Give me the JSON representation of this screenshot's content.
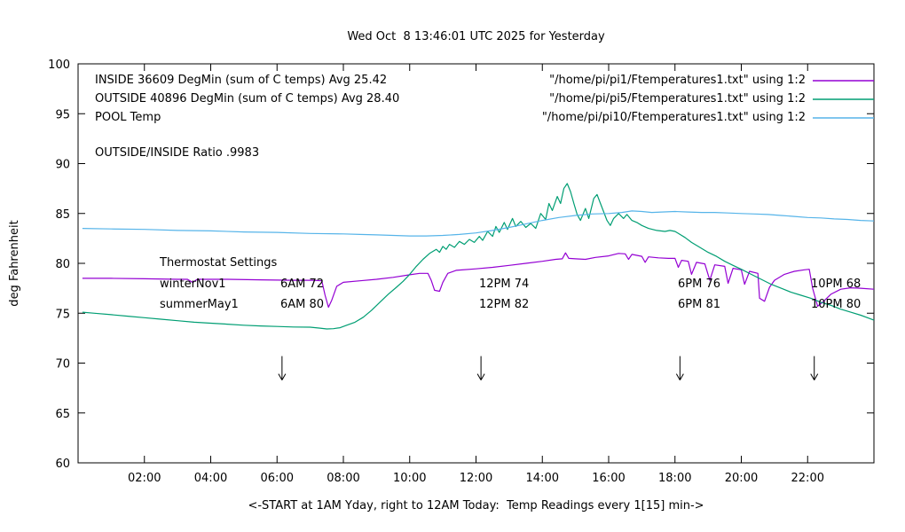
{
  "title": "Wed Oct  8 13:46:01 UTC 2025 for Yesterday",
  "axes": {
    "ylabel": "deg Fahrenheit",
    "xlabel": "<-START at 1AM Yday, right to 12AM Today:  Temp Readings every 1[15] min->"
  },
  "legend": {
    "rows": [
      {
        "label": "INSIDE 36609 DegMin (sum of C temps) Avg 25.42",
        "file": "\"/home/pi/pi1/Ftemperatures1.txt\" using 1:2",
        "color": "#9400d3"
      },
      {
        "label": "OUTSIDE 40896 DegMin (sum of C temps) Avg 28.40",
        "file": "\"/home/pi/pi5/Ftemperatures1.txt\" using 1:2",
        "color": "#009e73"
      },
      {
        "label": "POOL Temp",
        "file": "\"/home/pi/pi10/Ftemperatures1.txt\" using 1:2",
        "color": "#56b4e9"
      }
    ]
  },
  "ratio_text": "OUTSIDE/INSIDE Ratio .9983",
  "thermostat": {
    "heading": "Thermostat Settings",
    "rows": [
      {
        "name": "winterNov1",
        "cols": [
          "6AM 72",
          "12PM 74",
          "6PM 76",
          "10PM 68"
        ]
      },
      {
        "name": "summerMay1",
        "cols": [
          "6AM 80",
          "12PM 82",
          "6PM 81",
          "10PM 80"
        ]
      }
    ]
  },
  "chart_data": {
    "type": "line",
    "title": "Wed Oct  8 13:46:01 UTC 2025 for Yesterday",
    "xlabel": "<-START at 1AM Yday, right to 12AM Today:  Temp Readings every 1[15] min->",
    "ylabel": "deg Fahrenheit",
    "xlim": [
      0,
      24
    ],
    "ylim": [
      60,
      100
    ],
    "grid": false,
    "legend_position": "top-right-inside",
    "xticks": [
      {
        "v": 2,
        "label": "02:00"
      },
      {
        "v": 4,
        "label": "04:00"
      },
      {
        "v": 6,
        "label": "06:00"
      },
      {
        "v": 8,
        "label": "08:00"
      },
      {
        "v": 10,
        "label": "10:00"
      },
      {
        "v": 12,
        "label": "12:00"
      },
      {
        "v": 14,
        "label": "14:00"
      },
      {
        "v": 16,
        "label": "16:00"
      },
      {
        "v": 18,
        "label": "18:00"
      },
      {
        "v": 20,
        "label": "20:00"
      },
      {
        "v": 22,
        "label": "22:00"
      }
    ],
    "yticks": [
      60,
      65,
      70,
      75,
      80,
      85,
      90,
      95,
      100
    ],
    "arrows": {
      "times": [
        6.15,
        12.15,
        18.15,
        22.2
      ],
      "y_from": 70.7,
      "y_to": 68.3
    },
    "series": [
      {
        "name": "INSIDE",
        "color": "#9400d3",
        "points": [
          [
            0.13,
            78.5
          ],
          [
            1,
            78.5
          ],
          [
            2,
            78.45
          ],
          [
            3,
            78.4
          ],
          [
            3.3,
            78.4
          ],
          [
            3.45,
            78.1
          ],
          [
            3.6,
            78.4
          ],
          [
            4.5,
            78.4
          ],
          [
            5.5,
            78.35
          ],
          [
            6.5,
            78.3
          ],
          [
            7.1,
            78.3
          ],
          [
            7.35,
            78.25
          ],
          [
            7.45,
            76.8
          ],
          [
            7.55,
            75.6
          ],
          [
            7.65,
            76.3
          ],
          [
            7.8,
            77.7
          ],
          [
            8,
            78.1
          ],
          [
            8.5,
            78.25
          ],
          [
            9,
            78.4
          ],
          [
            9.5,
            78.6
          ],
          [
            10,
            78.85
          ],
          [
            10.3,
            79.0
          ],
          [
            10.55,
            79.0
          ],
          [
            10.65,
            78.3
          ],
          [
            10.75,
            77.3
          ],
          [
            10.9,
            77.2
          ],
          [
            11,
            78.1
          ],
          [
            11.15,
            79.0
          ],
          [
            11.4,
            79.3
          ],
          [
            12,
            79.45
          ],
          [
            12.5,
            79.6
          ],
          [
            13,
            79.8
          ],
          [
            13.5,
            80.0
          ],
          [
            14,
            80.2
          ],
          [
            14.4,
            80.4
          ],
          [
            14.6,
            80.45
          ],
          [
            14.7,
            81.05
          ],
          [
            14.8,
            80.5
          ],
          [
            15,
            80.45
          ],
          [
            15.3,
            80.4
          ],
          [
            15.6,
            80.6
          ],
          [
            16,
            80.75
          ],
          [
            16.3,
            81.0
          ],
          [
            16.5,
            80.95
          ],
          [
            16.6,
            80.4
          ],
          [
            16.7,
            80.9
          ],
          [
            17,
            80.7
          ],
          [
            17.1,
            80.1
          ],
          [
            17.2,
            80.65
          ],
          [
            17.5,
            80.55
          ],
          [
            17.8,
            80.5
          ],
          [
            18,
            80.5
          ],
          [
            18.1,
            79.6
          ],
          [
            18.2,
            80.3
          ],
          [
            18.4,
            80.2
          ],
          [
            18.5,
            78.9
          ],
          [
            18.65,
            80.1
          ],
          [
            18.9,
            79.95
          ],
          [
            19.05,
            78.3
          ],
          [
            19.2,
            79.85
          ],
          [
            19.5,
            79.7
          ],
          [
            19.6,
            78.0
          ],
          [
            19.75,
            79.5
          ],
          [
            20,
            79.35
          ],
          [
            20.1,
            77.9
          ],
          [
            20.25,
            79.2
          ],
          [
            20.5,
            79.0
          ],
          [
            20.55,
            76.5
          ],
          [
            20.7,
            76.2
          ],
          [
            20.85,
            77.6
          ],
          [
            21,
            78.3
          ],
          [
            21.3,
            78.9
          ],
          [
            21.6,
            79.2
          ],
          [
            21.9,
            79.35
          ],
          [
            22.05,
            79.4
          ],
          [
            22.15,
            77.5
          ],
          [
            22.3,
            75.7
          ],
          [
            22.45,
            76.1
          ],
          [
            22.7,
            76.9
          ],
          [
            23,
            77.4
          ],
          [
            23.3,
            77.55
          ],
          [
            23.6,
            77.5
          ],
          [
            24,
            77.4
          ]
        ]
      },
      {
        "name": "OUTSIDE",
        "color": "#009e73",
        "points": [
          [
            0.13,
            75.1
          ],
          [
            0.5,
            75.0
          ],
          [
            1,
            74.85
          ],
          [
            1.5,
            74.7
          ],
          [
            2,
            74.55
          ],
          [
            2.5,
            74.4
          ],
          [
            3,
            74.25
          ],
          [
            3.5,
            74.1
          ],
          [
            4,
            74.0
          ],
          [
            4.5,
            73.9
          ],
          [
            5,
            73.8
          ],
          [
            5.5,
            73.72
          ],
          [
            6,
            73.67
          ],
          [
            6.5,
            73.62
          ],
          [
            7,
            73.6
          ],
          [
            7.3,
            73.5
          ],
          [
            7.5,
            73.42
          ],
          [
            7.7,
            73.45
          ],
          [
            7.9,
            73.55
          ],
          [
            8.1,
            73.8
          ],
          [
            8.35,
            74.1
          ],
          [
            8.6,
            74.6
          ],
          [
            8.85,
            75.3
          ],
          [
            9.1,
            76.1
          ],
          [
            9.35,
            76.9
          ],
          [
            9.6,
            77.6
          ],
          [
            9.8,
            78.2
          ],
          [
            10,
            78.9
          ],
          [
            10.2,
            79.7
          ],
          [
            10.4,
            80.4
          ],
          [
            10.6,
            81.0
          ],
          [
            10.8,
            81.4
          ],
          [
            10.9,
            81.1
          ],
          [
            11,
            81.7
          ],
          [
            11.1,
            81.4
          ],
          [
            11.2,
            81.9
          ],
          [
            11.35,
            81.6
          ],
          [
            11.5,
            82.2
          ],
          [
            11.65,
            81.9
          ],
          [
            11.8,
            82.4
          ],
          [
            11.95,
            82.1
          ],
          [
            12.1,
            82.7
          ],
          [
            12.2,
            82.3
          ],
          [
            12.35,
            83.2
          ],
          [
            12.5,
            82.7
          ],
          [
            12.6,
            83.7
          ],
          [
            12.7,
            83.1
          ],
          [
            12.85,
            84.1
          ],
          [
            12.95,
            83.4
          ],
          [
            13.1,
            84.5
          ],
          [
            13.2,
            83.7
          ],
          [
            13.35,
            84.2
          ],
          [
            13.5,
            83.6
          ],
          [
            13.65,
            84.0
          ],
          [
            13.8,
            83.5
          ],
          [
            13.95,
            85.0
          ],
          [
            14.1,
            84.4
          ],
          [
            14.2,
            86.0
          ],
          [
            14.3,
            85.3
          ],
          [
            14.45,
            86.7
          ],
          [
            14.55,
            86.0
          ],
          [
            14.65,
            87.5
          ],
          [
            14.75,
            88.0
          ],
          [
            14.85,
            87.2
          ],
          [
            14.95,
            86.0
          ],
          [
            15.05,
            84.9
          ],
          [
            15.15,
            84.3
          ],
          [
            15.3,
            85.5
          ],
          [
            15.4,
            84.5
          ],
          [
            15.55,
            86.5
          ],
          [
            15.65,
            86.9
          ],
          [
            15.8,
            85.6
          ],
          [
            15.95,
            84.3
          ],
          [
            16.05,
            83.8
          ],
          [
            16.15,
            84.5
          ],
          [
            16.3,
            85.0
          ],
          [
            16.45,
            84.5
          ],
          [
            16.55,
            84.9
          ],
          [
            16.7,
            84.3
          ],
          [
            16.85,
            84.1
          ],
          [
            17,
            83.8
          ],
          [
            17.2,
            83.5
          ],
          [
            17.45,
            83.3
          ],
          [
            17.7,
            83.2
          ],
          [
            17.85,
            83.3
          ],
          [
            18,
            83.2
          ],
          [
            18.15,
            82.9
          ],
          [
            18.3,
            82.6
          ],
          [
            18.5,
            82.1
          ],
          [
            18.75,
            81.6
          ],
          [
            19,
            81.1
          ],
          [
            19.25,
            80.7
          ],
          [
            19.5,
            80.2
          ],
          [
            19.75,
            79.8
          ],
          [
            20,
            79.4
          ],
          [
            20.3,
            78.9
          ],
          [
            20.6,
            78.4
          ],
          [
            20.9,
            77.9
          ],
          [
            21.2,
            77.5
          ],
          [
            21.5,
            77.1
          ],
          [
            21.8,
            76.8
          ],
          [
            22.1,
            76.5
          ],
          [
            22.4,
            76.1
          ],
          [
            22.7,
            75.8
          ],
          [
            23,
            75.4
          ],
          [
            23.3,
            75.1
          ],
          [
            23.6,
            74.8
          ],
          [
            23.85,
            74.5
          ],
          [
            24,
            74.3
          ]
        ]
      },
      {
        "name": "POOL",
        "color": "#56b4e9",
        "points": [
          [
            0.13,
            83.5
          ],
          [
            1,
            83.45
          ],
          [
            2,
            83.4
          ],
          [
            3,
            83.3
          ],
          [
            4,
            83.25
          ],
          [
            5,
            83.15
          ],
          [
            6,
            83.1
          ],
          [
            7,
            83.0
          ],
          [
            8,
            82.95
          ],
          [
            8.5,
            82.9
          ],
          [
            9,
            82.85
          ],
          [
            9.5,
            82.8
          ],
          [
            10,
            82.75
          ],
          [
            10.5,
            82.75
          ],
          [
            11,
            82.8
          ],
          [
            11.5,
            82.9
          ],
          [
            12,
            83.05
          ],
          [
            12.5,
            83.3
          ],
          [
            13,
            83.6
          ],
          [
            13.5,
            83.95
          ],
          [
            14,
            84.3
          ],
          [
            14.5,
            84.6
          ],
          [
            15,
            84.8
          ],
          [
            15.5,
            84.95
          ],
          [
            16,
            85.0
          ],
          [
            16.4,
            85.1
          ],
          [
            16.7,
            85.25
          ],
          [
            17,
            85.2
          ],
          [
            17.3,
            85.1
          ],
          [
            17.6,
            85.15
          ],
          [
            18,
            85.2
          ],
          [
            18.4,
            85.15
          ],
          [
            18.8,
            85.1
          ],
          [
            19.2,
            85.1
          ],
          [
            19.6,
            85.05
          ],
          [
            20,
            85.0
          ],
          [
            20.4,
            84.95
          ],
          [
            20.8,
            84.9
          ],
          [
            21.2,
            84.8
          ],
          [
            21.6,
            84.7
          ],
          [
            22,
            84.6
          ],
          [
            22.4,
            84.55
          ],
          [
            22.8,
            84.45
          ],
          [
            23.2,
            84.4
          ],
          [
            23.6,
            84.3
          ],
          [
            24,
            84.25
          ]
        ]
      }
    ]
  }
}
